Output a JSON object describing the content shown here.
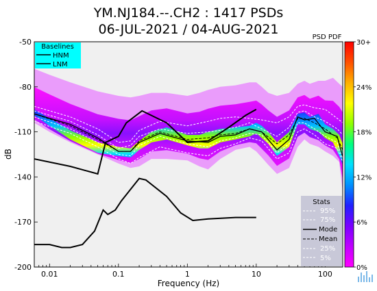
{
  "chart_data": {
    "type": "heatmap",
    "title_line1": "YM.NJ184.--.CH2 : 1417 PSDs",
    "title_line2": "06-JUL-2021 / 04-AUG-2021",
    "xlabel": "Frequency (Hz)",
    "ylabel": "dB",
    "xscale": "log",
    "xlim": [
      0.006,
      180
    ],
    "ylim": [
      -200,
      -50
    ],
    "x_ticks": [
      0.01,
      0.1,
      1,
      10,
      100
    ],
    "x_tick_labels": [
      "0.01",
      "0.1",
      "1",
      "10",
      "100"
    ],
    "y_ticks": [
      -50,
      -80,
      -110,
      -140,
      -170,
      -200
    ],
    "y_tick_labels": [
      "-50",
      "-80",
      "-110",
      "-140",
      "-170",
      "-200"
    ],
    "background_color": "#f0f0f0",
    "baselines": {
      "title": "Baselines",
      "entries": [
        "HNM",
        "LNM"
      ],
      "hnm": {
        "x": [
          0.006,
          0.02,
          0.05,
          0.065,
          0.1,
          0.13,
          0.22,
          0.5,
          1,
          2,
          4,
          7,
          10
        ],
        "y": [
          -128,
          -133,
          -138,
          -117,
          -113,
          -104,
          -96,
          -104,
          -117,
          -116,
          -107,
          -99,
          -95
        ]
      },
      "lnm": {
        "x": [
          0.006,
          0.01,
          0.015,
          0.02,
          0.03,
          0.045,
          0.06,
          0.07,
          0.09,
          0.11,
          0.2,
          0.25,
          0.5,
          0.8,
          1.2,
          2,
          5,
          10
        ],
        "y": [
          -185,
          -185,
          -187,
          -187,
          -185,
          -176,
          -162,
          -165,
          -162,
          -156,
          -141,
          -142,
          -153,
          -164,
          -169,
          -168,
          -167,
          -167
        ]
      }
    },
    "stats": {
      "title": "Stats",
      "entries": [
        "95%",
        "75%",
        "Mode",
        "Mean",
        "25%",
        "5%"
      ],
      "series": [
        {
          "name": "95%",
          "x": [
            0.006,
            0.02,
            0.05,
            0.1,
            0.15,
            0.2,
            0.4,
            1,
            2,
            3,
            5,
            8,
            12,
            20,
            30,
            40,
            50,
            70,
            100,
            150,
            180
          ],
          "y": [
            -93,
            -100,
            -108,
            -117,
            -116,
            -109,
            -103,
            -106,
            -103,
            -101,
            -100,
            -101,
            -102,
            -104,
            -100,
            -93,
            -92,
            -94,
            -95,
            -101,
            -104
          ]
        },
        {
          "name": "75%",
          "x": [
            0.006,
            0.02,
            0.05,
            0.1,
            0.15,
            0.2,
            0.4,
            1,
            2,
            3,
            5,
            8,
            12,
            20,
            30,
            40,
            50,
            70,
            100,
            150,
            180
          ],
          "y": [
            -96,
            -103,
            -112,
            -121,
            -119,
            -113,
            -108,
            -111,
            -110,
            -109,
            -107,
            -104,
            -108,
            -113,
            -107,
            -97,
            -96,
            -100,
            -103,
            -108,
            -112
          ]
        },
        {
          "name": "Mode",
          "x": [
            0.006,
            0.02,
            0.05,
            0.1,
            0.15,
            0.2,
            0.4,
            1,
            2,
            3,
            5,
            8,
            12,
            20,
            30,
            40,
            50,
            70,
            100,
            150,
            180
          ],
          "y": [
            -98,
            -105,
            -114,
            -123,
            -123,
            -117,
            -111,
            -116,
            -117,
            -113,
            -112,
            -108,
            -110,
            -122,
            -115,
            -100,
            -102,
            -101,
            -110,
            -113,
            -127
          ]
        },
        {
          "name": "Mean",
          "x": [
            0.006,
            0.02,
            0.05,
            0.1,
            0.15,
            0.2,
            0.4,
            1,
            2,
            3,
            5,
            8,
            12,
            20,
            30,
            40,
            50,
            70,
            100,
            150,
            180
          ],
          "y": [
            -98,
            -106,
            -115,
            -123,
            -123,
            -116,
            -110,
            -115,
            -114,
            -112,
            -111,
            -108,
            -110,
            -118,
            -112,
            -101,
            -101,
            -104,
            -108,
            -114,
            -122
          ]
        },
        {
          "name": "25%",
          "x": [
            0.006,
            0.02,
            0.05,
            0.1,
            0.15,
            0.2,
            0.4,
            1,
            2,
            3,
            5,
            8,
            12,
            20,
            30,
            40,
            50,
            70,
            100,
            150,
            180
          ],
          "y": [
            -100,
            -108,
            -117,
            -125,
            -126,
            -119,
            -113,
            -118,
            -120,
            -116,
            -114,
            -111,
            -112,
            -124,
            -118,
            -104,
            -104,
            -108,
            -113,
            -117,
            -128
          ]
        },
        {
          "name": "5%",
          "x": [
            0.006,
            0.02,
            0.05,
            0.1,
            0.15,
            0.2,
            0.4,
            1,
            2,
            3,
            5,
            8,
            12,
            20,
            30,
            40,
            50,
            70,
            100,
            150,
            180
          ],
          "y": [
            -103,
            -111,
            -120,
            -128,
            -131,
            -127,
            -120,
            -124,
            -126,
            -121,
            -118,
            -114,
            -116,
            -128,
            -124,
            -110,
            -108,
            -112,
            -118,
            -121,
            -130
          ]
        }
      ]
    },
    "colorbar": {
      "title": "PSD PDF",
      "tick_labels": [
        "30+",
        "24%",
        "18%",
        "12%",
        "6%",
        "0%"
      ],
      "tick_values": [
        30,
        24,
        18,
        12,
        6,
        0
      ],
      "colors": [
        "#ff00ff",
        "#c000ff",
        "#7a00ff",
        "#2020ff",
        "#0090ff",
        "#00e0ff",
        "#00ff80",
        "#90ff00",
        "#ffff00",
        "#ffb000",
        "#ff5000",
        "#ff0000"
      ]
    },
    "pdf_band": {
      "x": [
        0.006,
        0.01,
        0.02,
        0.05,
        0.1,
        0.15,
        0.2,
        0.3,
        0.5,
        1,
        1.5,
        2,
        3,
        5,
        8,
        10,
        12,
        15,
        20,
        30,
        40,
        50,
        60,
        80,
        100,
        130,
        160,
        180
      ],
      "upper": [
        -68,
        -72,
        -77,
        -83,
        -86,
        -87,
        -86,
        -84,
        -84,
        -86,
        -84,
        -82,
        -80,
        -79,
        -77,
        -77,
        -80,
        -84,
        -86,
        -84,
        -78,
        -76,
        -78,
        -76,
        -76,
        -74,
        -78,
        -80
      ],
      "lower": [
        -104,
        -110,
        -117,
        -125,
        -131,
        -134,
        -133,
        -128,
        -128,
        -129,
        -133,
        -135,
        -128,
        -122,
        -120,
        -123,
        -127,
        -132,
        -138,
        -134,
        -120,
        -115,
        -118,
        -120,
        -123,
        -126,
        -130,
        -150
      ],
      "core_upper": [
        -95,
        -101,
        -109,
        -117,
        -120,
        -121,
        -116,
        -110,
        -107,
        -112,
        -112,
        -110,
        -108,
        -107,
        -106,
        -104,
        -106,
        -110,
        -117,
        -110,
        -98,
        -97,
        -100,
        -98,
        -105,
        -108,
        -112,
        -118
      ],
      "core_lower": [
        -99,
        -106,
        -115,
        -124,
        -126,
        -127,
        -122,
        -117,
        -115,
        -119,
        -121,
        -121,
        -117,
        -115,
        -113,
        -111,
        -114,
        -118,
        -126,
        -120,
        -105,
        -105,
        -108,
        -110,
        -114,
        -117,
        -126,
        -132
      ]
    }
  }
}
